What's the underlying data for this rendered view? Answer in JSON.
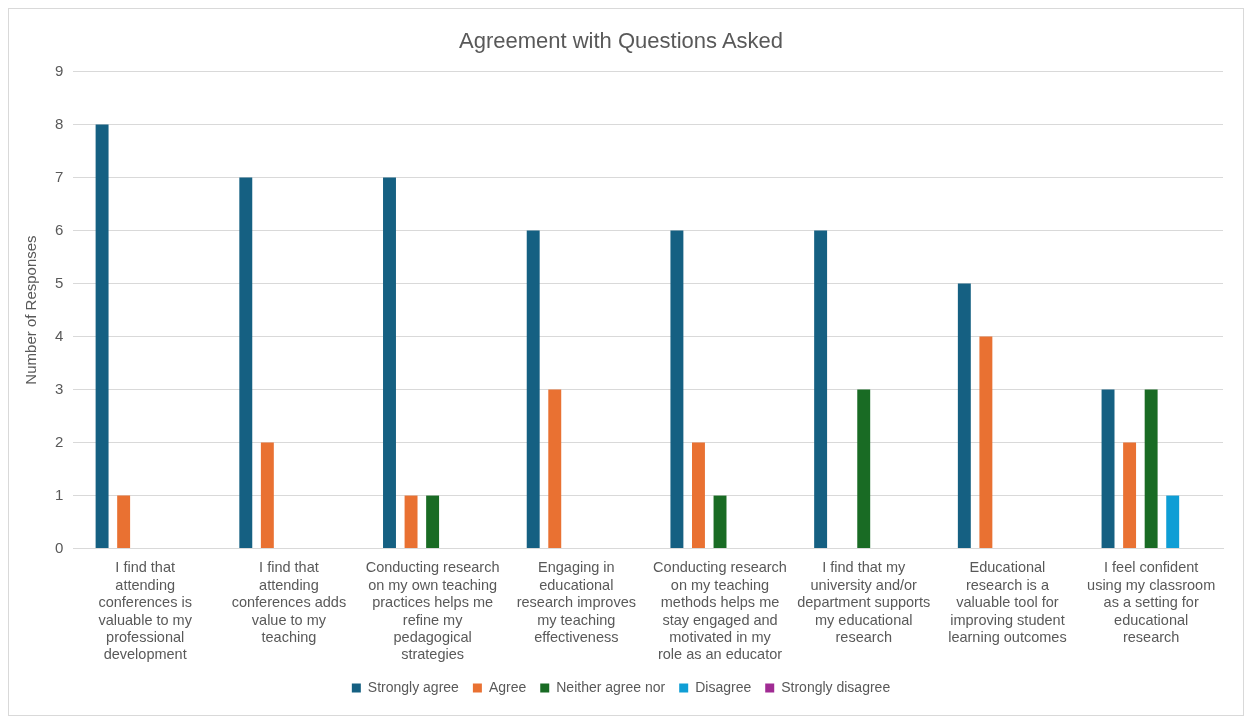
{
  "chart_data": {
    "type": "bar",
    "title": "Agreement with Questions Asked",
    "ylabel": "Number of Responses",
    "categories": [
      "I find that attending conferences is valuable to my professional development",
      "I find that attending conferences adds value to my teaching",
      "Conducting research on my own teaching practices helps me refine my pedagogical strategies",
      "Engaging in educational research improves my teaching effectiveness",
      "Conducting research on my teaching methods helps me stay engaged and motivated in my role as an educator",
      "I find that my university and/or department supports my educational research",
      "Educational research is a valuable tool for improving student learning outcomes",
      "I feel confident using my classroom as a setting for educational research"
    ],
    "series": [
      {
        "name": "Strongly agree",
        "color": "#156082",
        "values": [
          8,
          7,
          7,
          6,
          6,
          6,
          5,
          3
        ]
      },
      {
        "name": "Agree",
        "color": "#e97132",
        "values": [
          1,
          2,
          1,
          3,
          2,
          0,
          4,
          2
        ]
      },
      {
        "name": "Neither agree nor",
        "color": "#196b24",
        "values": [
          0,
          0,
          1,
          0,
          1,
          3,
          0,
          3
        ]
      },
      {
        "name": "Disagree",
        "color": "#0f9ed5",
        "values": [
          0,
          0,
          0,
          0,
          0,
          0,
          0,
          1
        ]
      },
      {
        "name": "Strongly disagree",
        "color": "#a02b93",
        "values": [
          0,
          0,
          0,
          0,
          0,
          0,
          0,
          0
        ]
      }
    ],
    "ylim": [
      0,
      9
    ],
    "yticks": [
      0,
      1,
      2,
      3,
      4,
      5,
      6,
      7,
      8,
      9
    ],
    "grid": "y",
    "legend": "bottom"
  }
}
